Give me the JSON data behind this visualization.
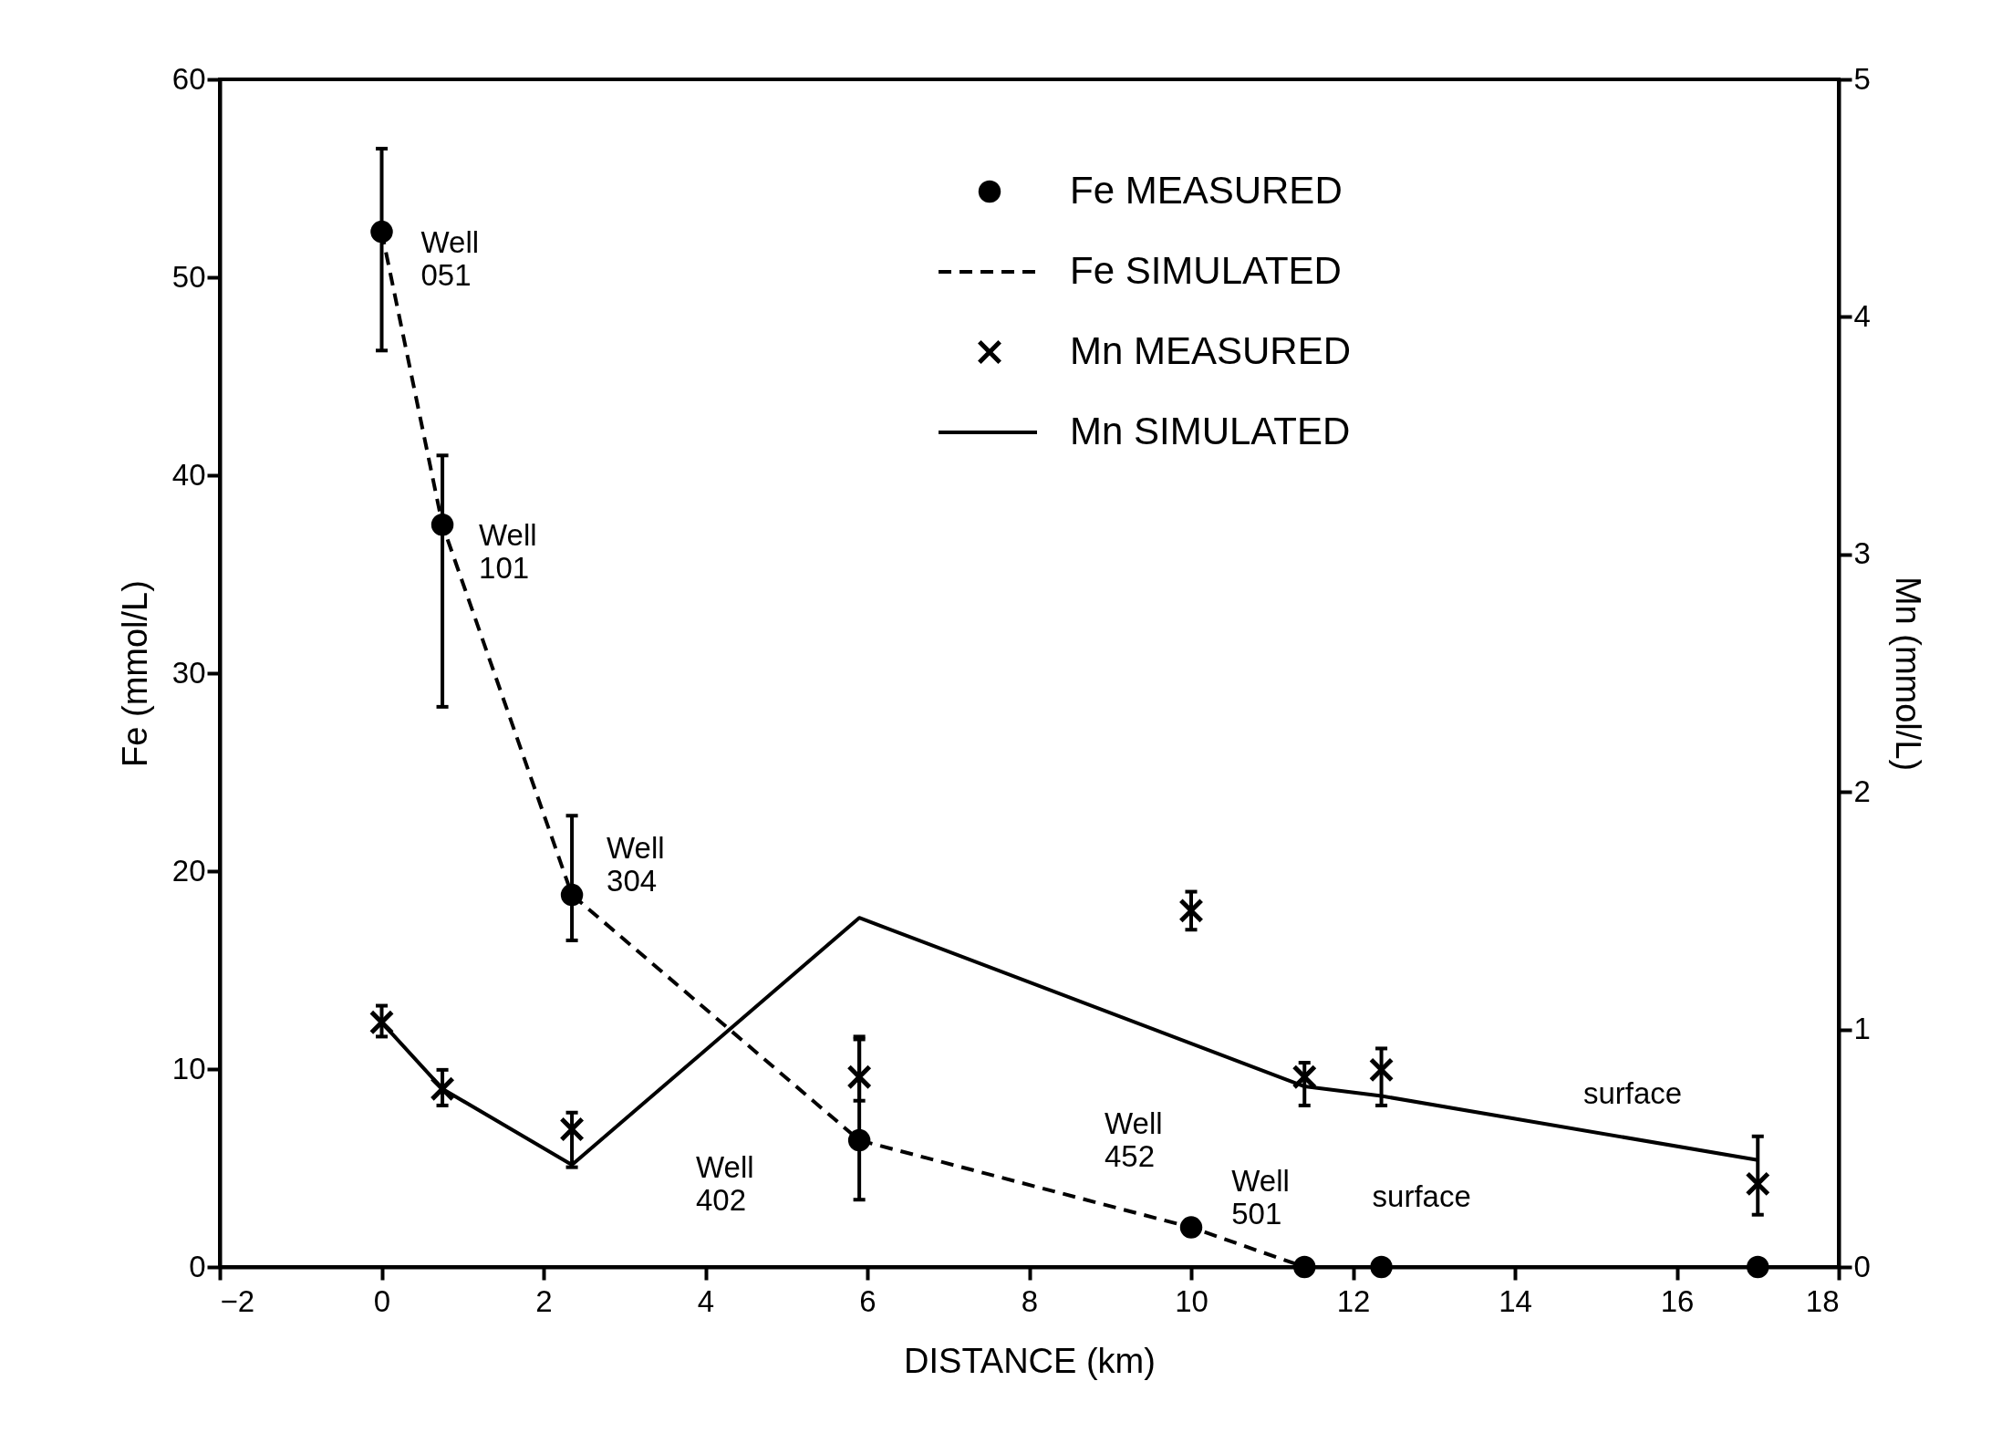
{
  "chart_data": {
    "type": "scatter",
    "xlabel": "DISTANCE (km)",
    "ylabel": "Fe (mmol/L)",
    "y2label": "Mn (mmol/L)",
    "xlim": [
      -2,
      18
    ],
    "xticks": [
      -2,
      0,
      2,
      4,
      6,
      8,
      10,
      12,
      14,
      16,
      18
    ],
    "ylim": [
      0,
      60
    ],
    "yticks": [
      0,
      10,
      20,
      30,
      40,
      50,
      60
    ],
    "y2lim": [
      0,
      5
    ],
    "y2ticks": [
      0,
      1,
      2,
      3,
      4,
      5
    ],
    "grid": false,
    "legend": "top right",
    "series": [
      {
        "name": "Fe MEASURED",
        "type": "scatter",
        "color": "#000000",
        "marker": "circle",
        "x": [
          0,
          0.75,
          2.35,
          5.9,
          10,
          11.4,
          12.35,
          17
        ],
        "values": [
          52.3,
          37.5,
          18.8,
          6.4,
          2.0,
          0,
          0,
          0
        ],
        "errors": [
          [
            46.3,
            56.5
          ],
          [
            28.3,
            41
          ],
          [
            16.5,
            22.8
          ],
          [
            3.4,
            11.5
          ],
          null,
          null,
          null,
          null
        ]
      },
      {
        "name": "Fe SIMULATED",
        "type": "line",
        "color": "#000000",
        "marker": "none",
        "line_style": "dashed",
        "x": [
          0,
          0.75,
          2.35,
          5.9,
          10,
          11.4,
          12.35,
          17
        ],
        "values": [
          52.3,
          37.5,
          18.8,
          6.4,
          2.0,
          0,
          0,
          0
        ]
      },
      {
        "name": "Mn MEASURED",
        "color": "#000000",
        "marker": "cross",
        "axis": "y2",
        "x": [
          0,
          0.75,
          2.35,
          5.9,
          10,
          11.4,
          12.35,
          17
        ],
        "values": [
          1.03,
          0.75,
          0.58,
          0.8,
          1.5,
          0.8,
          0.83,
          0.35
        ],
        "errors": [
          [
            0.97,
            1.1
          ],
          [
            0.68,
            0.83
          ],
          [
            0.42,
            0.65
          ],
          [
            0.7,
            0.97
          ],
          [
            1.42,
            1.58
          ],
          [
            0.68,
            0.86
          ],
          [
            0.68,
            0.92
          ],
          [
            0.22,
            0.55
          ]
        ]
      },
      {
        "name": "Mn SIMULATED",
        "type": "line",
        "color": "#000000",
        "marker": "none",
        "line_style": "solid",
        "axis": "y2",
        "x": [
          0,
          0.75,
          2.35,
          5.9,
          11.4,
          12.35,
          17
        ],
        "values": [
          1.03,
          0.75,
          0.43,
          1.47,
          0.76,
          0.72,
          0.45
        ]
      }
    ],
    "annotations": [
      {
        "text": "Well\n051",
        "x": 0,
        "y": 52.3
      },
      {
        "text": "Well\n101",
        "x": 0.75,
        "y": 37.5
      },
      {
        "text": "Well\n304",
        "x": 2.35,
        "y": 18.8
      },
      "Well\n402",
      {
        "text": "Well\n452",
        "x": 10,
        "y": 2.0
      },
      {
        "text": "Well\n501",
        "x": 11.4,
        "y": 0
      },
      {
        "text": "surface",
        "x": 12.35,
        "y": 0
      },
      "surface"
    ]
  }
}
